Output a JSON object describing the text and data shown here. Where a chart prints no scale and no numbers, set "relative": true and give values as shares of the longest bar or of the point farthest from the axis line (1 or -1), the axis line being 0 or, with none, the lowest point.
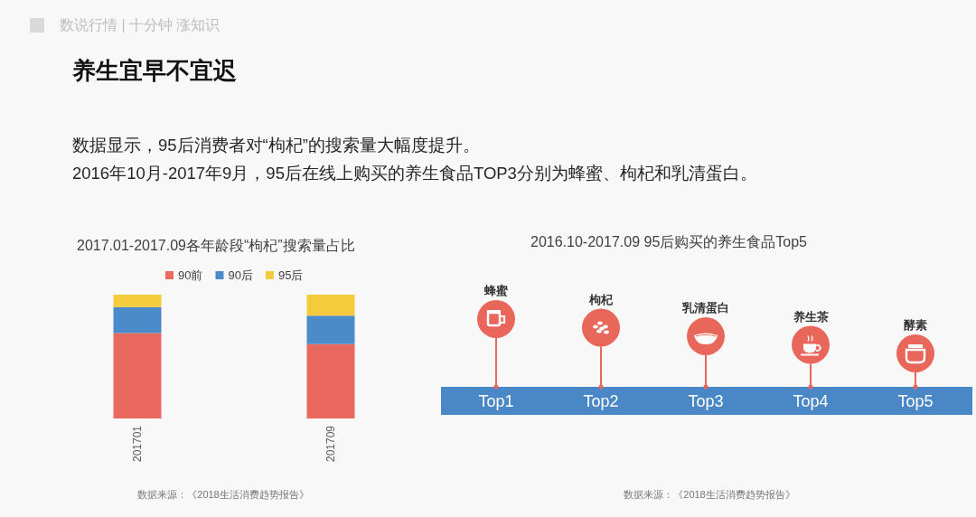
{
  "chart_data": [
    {
      "type": "other",
      "title": "养生宜早不宜迟",
      "annotations": [
        "数说行情 | 十分钟 涨知识",
        "数据显示，95后消费者对“枸杞”的搜索量大幅度提升。",
        "2016年10月-2017年9月，95后在线上购买的养生食品TOP3分别为蜂蜜、枸杞和乳清蛋白。"
      ]
    },
    {
      "type": "bar",
      "title": "2017.01-2017.09各年龄段“枸杞”搜索量占比",
      "categories": [
        "201701",
        "201709"
      ],
      "series": [
        {
          "name": "90前",
          "color": "#e9695e",
          "values": [
            0.69,
            0.6
          ]
        },
        {
          "name": "90后",
          "color": "#4b8bca",
          "values": [
            0.21,
            0.23
          ]
        },
        {
          "name": "95后",
          "color": "#f4cb3a",
          "values": [
            0.1,
            0.17
          ]
        }
      ],
      "stacked": true,
      "relative": true,
      "legend": "top",
      "annotations": [
        "数据来源：《2018生活消费趋势报告》"
      ]
    },
    {
      "type": "other",
      "title": "2016.10-2017.09 95后购买的养生食品Top5",
      "categories": [
        "Top1",
        "Top2",
        "Top3",
        "Top4",
        "Top5"
      ],
      "annotations": [
        {
          "text": "蜂蜜",
          "x": "Top1"
        },
        {
          "text": "枸杞",
          "x": "Top2"
        },
        {
          "text": "乳清蛋白",
          "x": "Top3"
        },
        {
          "text": "养生茶",
          "x": "Top4"
        },
        {
          "text": "酵素",
          "x": "Top5"
        },
        "数据来源：《2018生活消费趋势报告》"
      ]
    }
  ]
}
